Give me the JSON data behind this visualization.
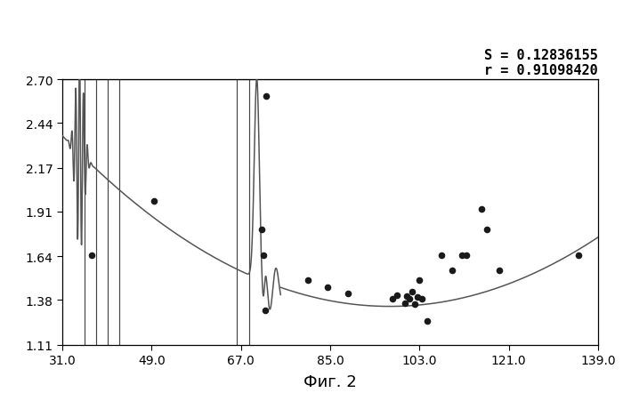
{
  "title": "",
  "xlabel": "Фиг. 2",
  "ylabel": "",
  "xlim": [
    31.0,
    139.0
  ],
  "ylim": [
    1.11,
    2.7
  ],
  "xticks": [
    31.0,
    49.0,
    67.0,
    85.0,
    103.0,
    121.0,
    139.0
  ],
  "yticks": [
    1.11,
    1.38,
    1.64,
    1.91,
    2.17,
    2.44,
    2.7
  ],
  "annotation_line1": "S = 0.12836155",
  "annotation_line2": "r = 0.91098420",
  "scatter_points": [
    [
      37.0,
      1.645
    ],
    [
      49.5,
      1.97
    ],
    [
      72.0,
      2.6
    ],
    [
      71.2,
      1.8
    ],
    [
      71.5,
      1.645
    ],
    [
      71.9,
      1.315
    ],
    [
      80.5,
      1.5
    ],
    [
      84.5,
      1.455
    ],
    [
      88.5,
      1.42
    ],
    [
      97.5,
      1.385
    ],
    [
      98.5,
      1.405
    ],
    [
      100.0,
      1.36
    ],
    [
      100.5,
      1.4
    ],
    [
      101.0,
      1.385
    ],
    [
      101.5,
      1.43
    ],
    [
      102.0,
      1.355
    ],
    [
      102.5,
      1.395
    ],
    [
      103.0,
      1.5
    ],
    [
      103.5,
      1.385
    ],
    [
      104.5,
      1.25
    ],
    [
      107.5,
      1.645
    ],
    [
      109.5,
      1.555
    ],
    [
      111.5,
      1.645
    ],
    [
      112.5,
      1.645
    ],
    [
      115.5,
      1.925
    ],
    [
      116.5,
      1.8
    ],
    [
      119.0,
      1.555
    ],
    [
      135.0,
      1.645
    ]
  ],
  "vertical_lines": [
    35.5,
    37.8,
    40.2,
    42.5,
    66.2,
    68.7
  ],
  "curve_color": "#555555",
  "scatter_color": "#1a1a1a",
  "vline_color": "#444444",
  "background_color": "#ffffff",
  "text_color": "#000000"
}
